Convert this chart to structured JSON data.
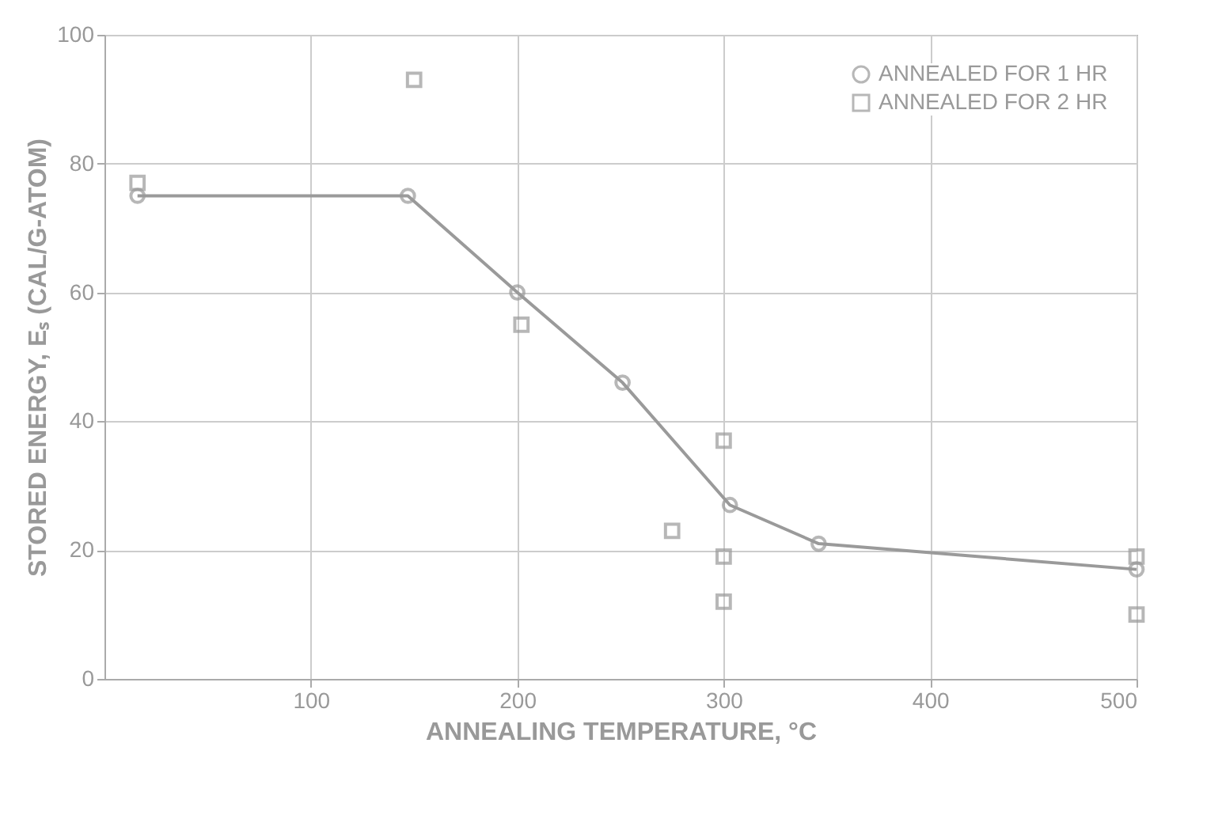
{
  "chart_data": {
    "type": "line",
    "xlabel": "ANNEALING TEMPERATURE, °C",
    "ylabel": "STORED ENERGY, Eₛ (CAL/G-ATOM)",
    "xlim": [
      0,
      500
    ],
    "xticks": [
      100,
      200,
      300,
      400,
      500
    ],
    "ylim": [
      0,
      100
    ],
    "yticks": [
      0,
      20,
      40,
      60,
      80,
      100
    ],
    "grid": true,
    "legend": "top right",
    "series": [
      {
        "name": "ANNEALED FOR 1 HR",
        "marker": "circle",
        "color": "#9a9a9a",
        "x": [
          16,
          147,
          200,
          251,
          303,
          346,
          500
        ],
        "values": [
          75,
          75,
          60,
          46,
          27,
          21,
          17
        ]
      },
      {
        "name": "ANNEALED FOR 2 HR",
        "type": "scatter",
        "marker": "square",
        "color": "#9a9a9a",
        "x": [
          16,
          150,
          202,
          275,
          300,
          300,
          300,
          500,
          500
        ],
        "values": [
          77,
          93,
          55,
          23,
          37,
          19,
          12,
          19,
          10
        ]
      }
    ]
  }
}
